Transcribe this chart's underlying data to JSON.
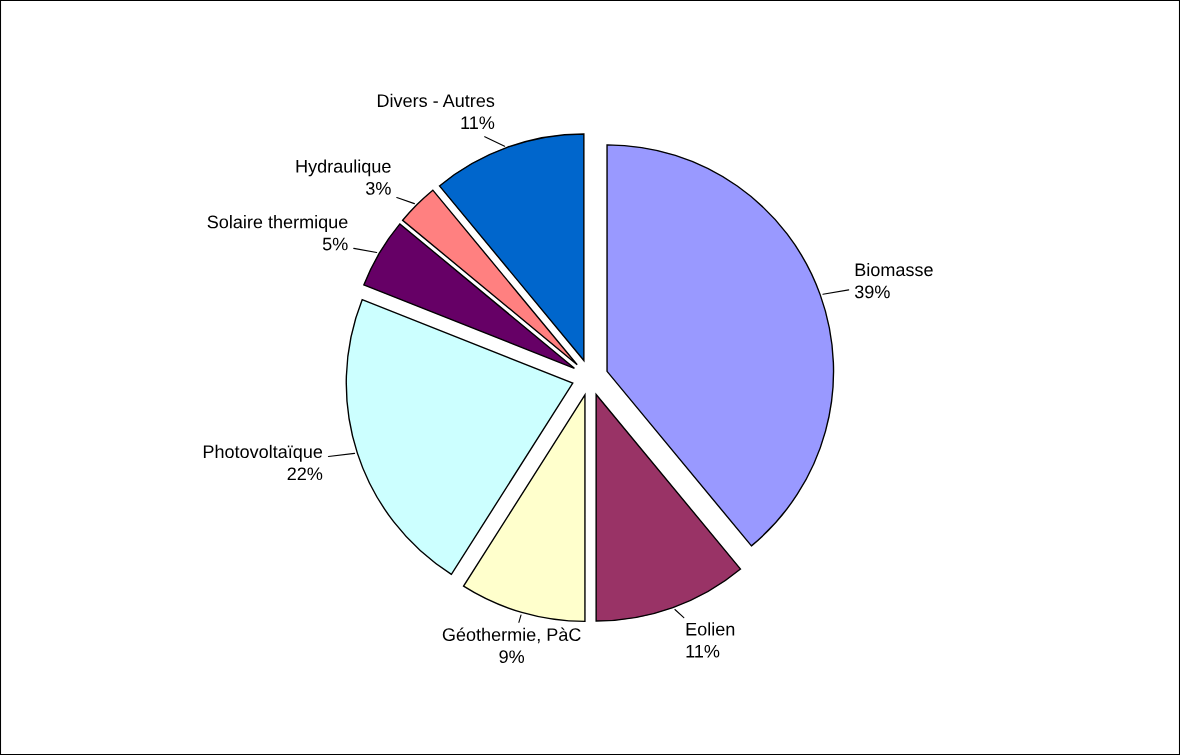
{
  "chart_data": {
    "type": "pie",
    "categories": [
      "Biomasse",
      "Eolien",
      "Géothermie, PàC",
      "Photovoltaïque",
      "Solaire thermique",
      "Hydraulique",
      "Divers - Autres"
    ],
    "values": [
      39,
      11,
      9,
      22,
      5,
      3,
      11
    ],
    "colors": [
      "#9999ff",
      "#993366",
      "#ffffcc",
      "#ccffff",
      "#660066",
      "#ff8080",
      "#0066cc"
    ],
    "value_labels": [
      "39%",
      "11%",
      "9%",
      "22%",
      "5%",
      "3%",
      "11%"
    ]
  }
}
